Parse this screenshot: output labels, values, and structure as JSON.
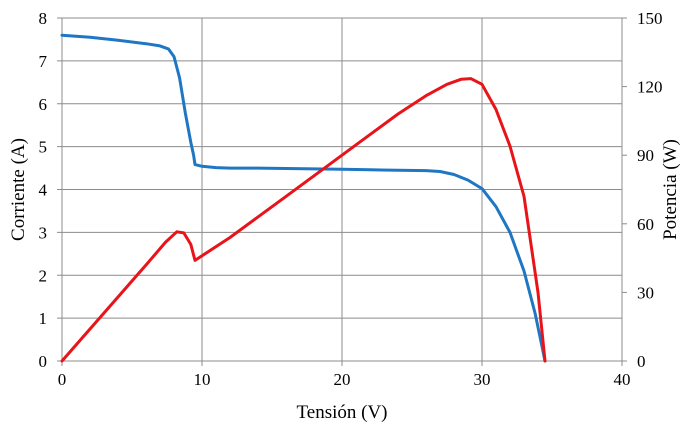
{
  "chart_data": {
    "type": "line",
    "xlabel": "Tensión (V)",
    "ylabel_left": "Corriente (A)",
    "ylabel_right": "Potencia (W)",
    "xlim": [
      0,
      40
    ],
    "ylim_left": [
      0,
      8
    ],
    "ylim_right": [
      0,
      150
    ],
    "x_ticks": [
      "0",
      "10",
      "20",
      "30",
      "40"
    ],
    "y_left_ticks": [
      "0",
      "1",
      "2",
      "3",
      "4",
      "5",
      "6",
      "7",
      "8"
    ],
    "y_right_ticks": [
      "0",
      "30",
      "60",
      "90",
      "120",
      "150"
    ],
    "grid": true,
    "series": [
      {
        "axis": "left",
        "color": "#1f77c4",
        "points": [
          [
            0,
            7.6
          ],
          [
            2,
            7.55
          ],
          [
            4,
            7.48
          ],
          [
            6,
            7.4
          ],
          [
            7,
            7.35
          ],
          [
            7.6,
            7.28
          ],
          [
            8.0,
            7.1
          ],
          [
            8.4,
            6.6
          ],
          [
            8.8,
            5.8
          ],
          [
            9.2,
            5.1
          ],
          [
            9.4,
            4.8
          ],
          [
            9.5,
            4.58
          ],
          [
            10,
            4.54
          ],
          [
            11,
            4.51
          ],
          [
            12,
            4.5
          ],
          [
            14,
            4.5
          ],
          [
            16,
            4.49
          ],
          [
            18,
            4.48
          ],
          [
            20,
            4.47
          ],
          [
            22,
            4.46
          ],
          [
            24,
            4.45
          ],
          [
            26,
            4.44
          ],
          [
            27,
            4.42
          ],
          [
            28,
            4.35
          ],
          [
            29,
            4.22
          ],
          [
            30,
            4.02
          ],
          [
            31,
            3.6
          ],
          [
            32,
            3.0
          ],
          [
            33,
            2.1
          ],
          [
            33.8,
            1.1
          ],
          [
            34.5,
            0.0
          ]
        ]
      },
      {
        "axis": "right",
        "color": "#e8141a",
        "points": [
          [
            0,
            0
          ],
          [
            2,
            14
          ],
          [
            4,
            28
          ],
          [
            6,
            42
          ],
          [
            7.4,
            52
          ],
          [
            8.2,
            56.5
          ],
          [
            8.7,
            56
          ],
          [
            9.2,
            51
          ],
          [
            9.5,
            44
          ],
          [
            10,
            46
          ],
          [
            12,
            54
          ],
          [
            14,
            63
          ],
          [
            16,
            72
          ],
          [
            18,
            81
          ],
          [
            20,
            90
          ],
          [
            22,
            99
          ],
          [
            24,
            108
          ],
          [
            26,
            116
          ],
          [
            27.5,
            121
          ],
          [
            28.5,
            123.2
          ],
          [
            29.2,
            123.5
          ],
          [
            30,
            121
          ],
          [
            31,
            110
          ],
          [
            32,
            94
          ],
          [
            33,
            72
          ],
          [
            34,
            30
          ],
          [
            34.5,
            0
          ]
        ]
      }
    ]
  }
}
